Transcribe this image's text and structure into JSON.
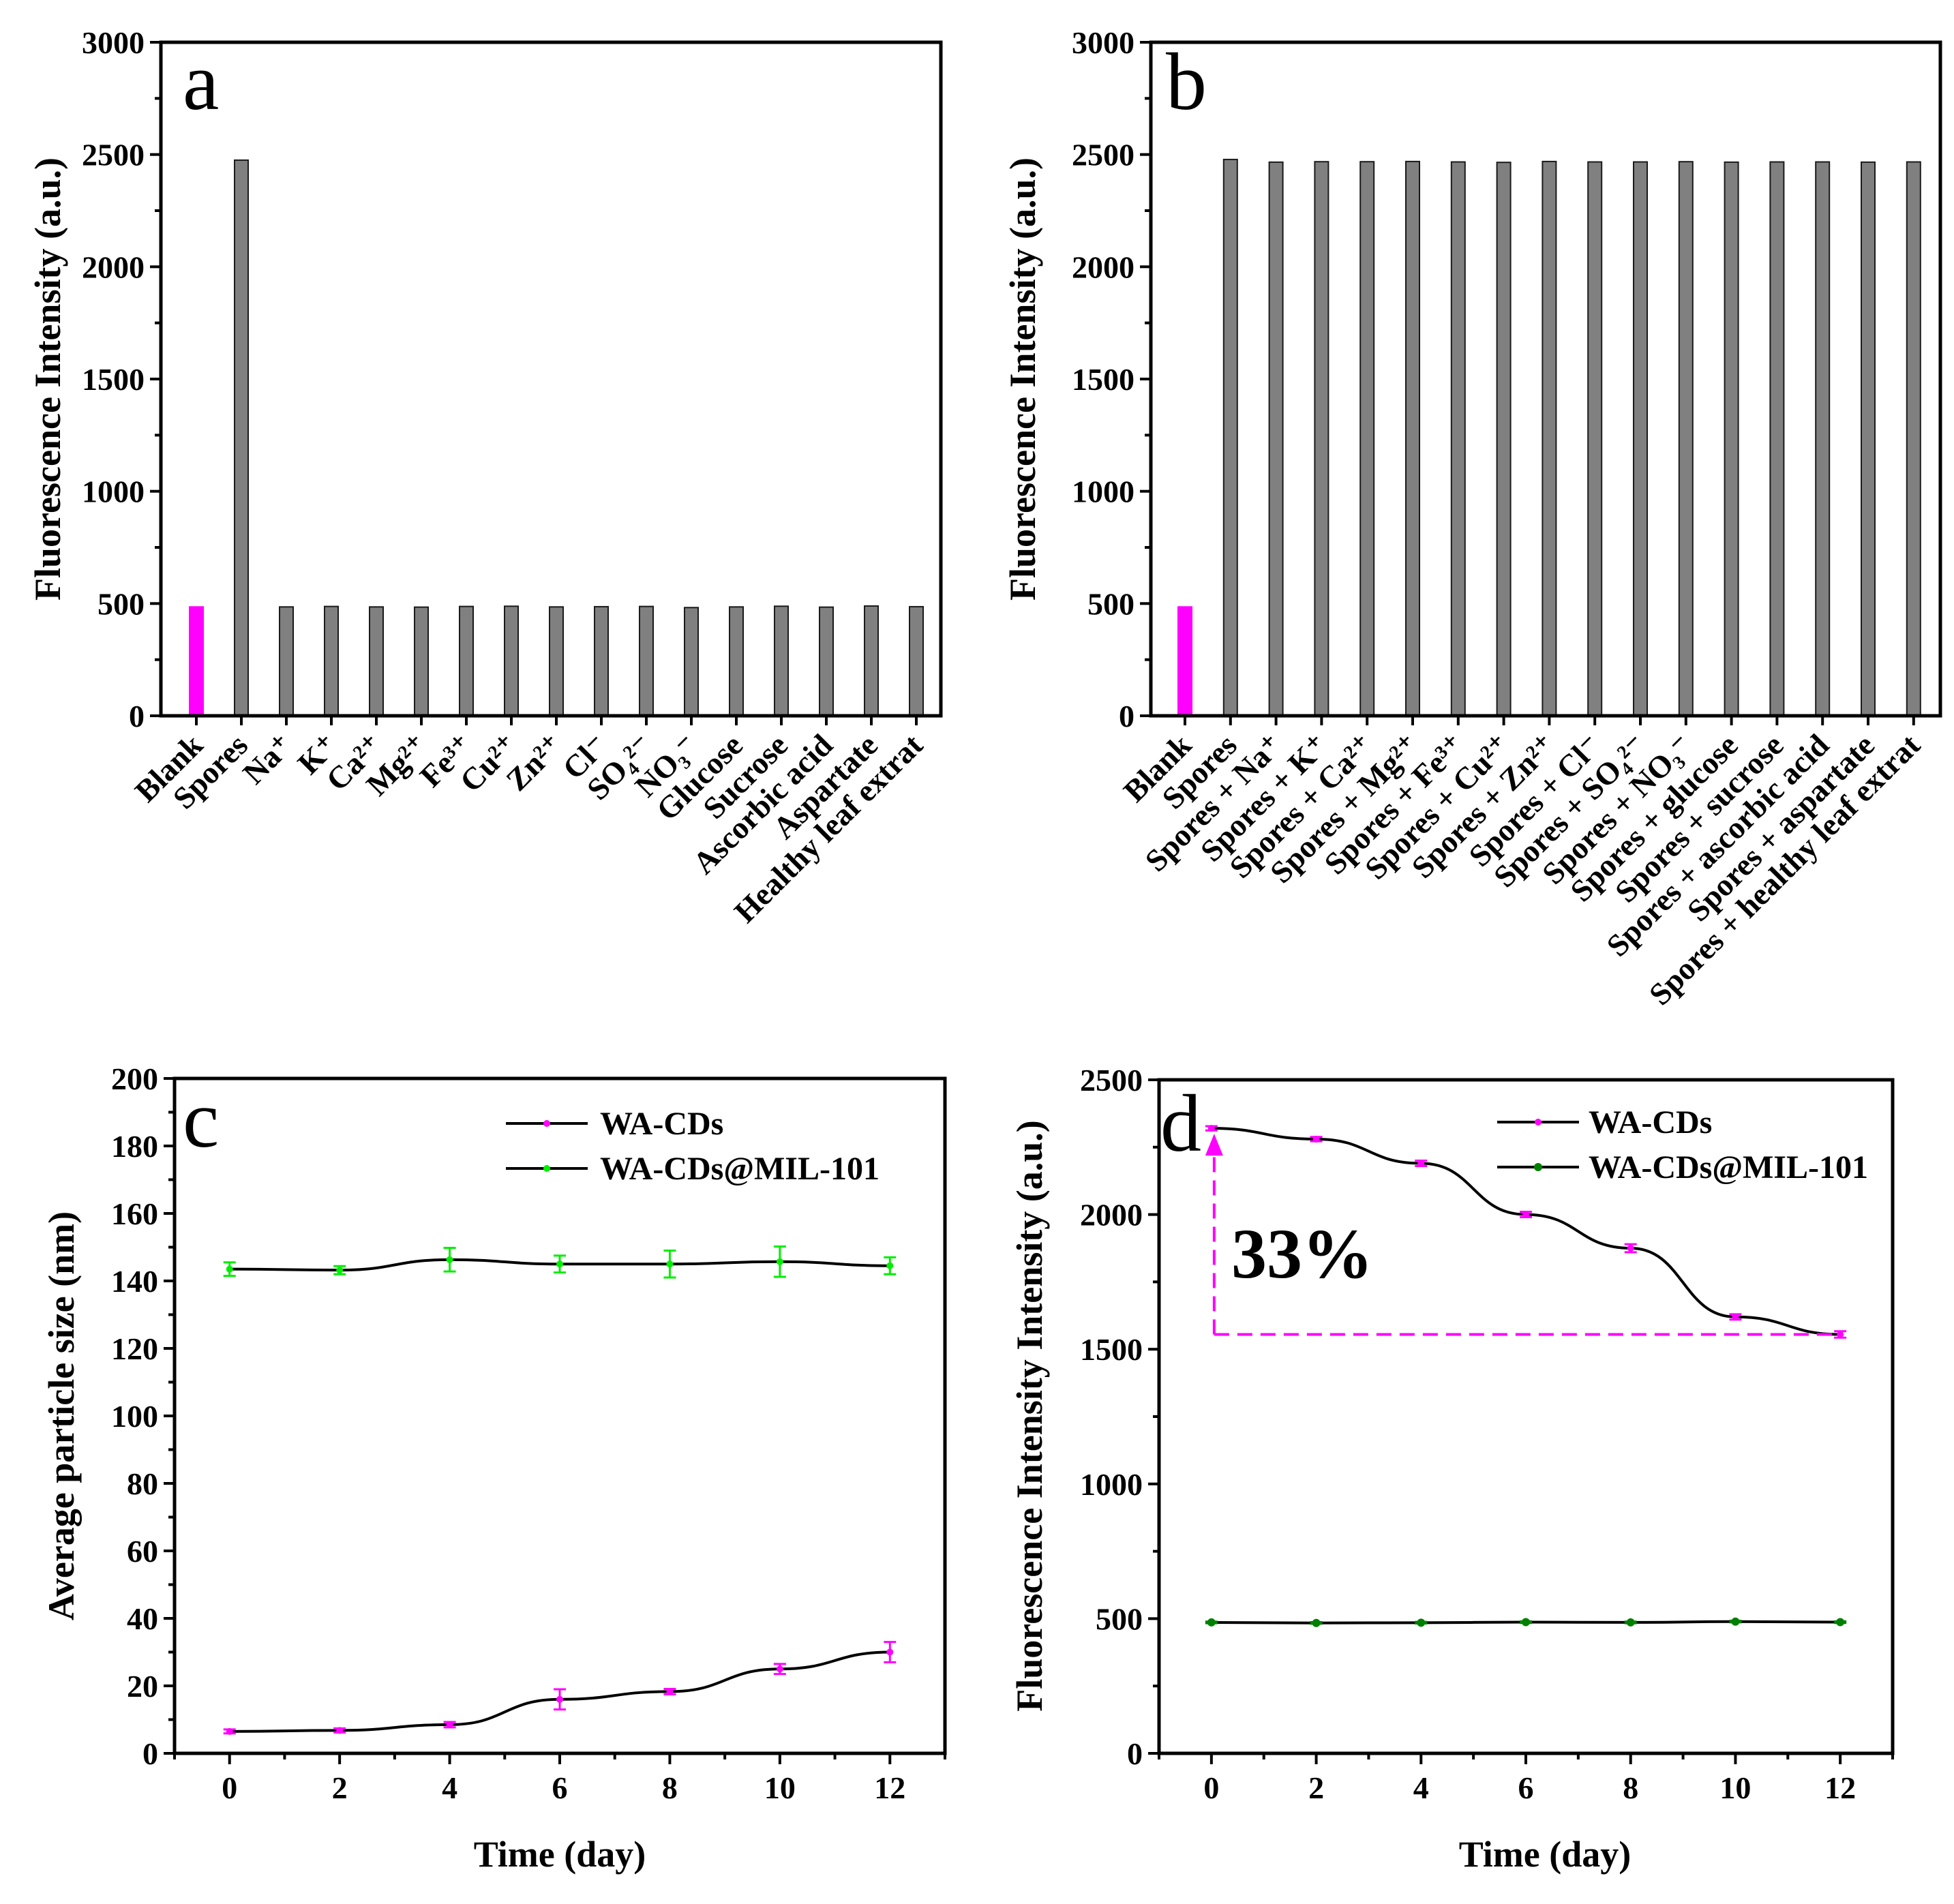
{
  "colors": {
    "blank": "#ff00ff",
    "bar": "#808080",
    "bar_edge": "#1a1a1a",
    "series_c_0": "#ff00ff",
    "series_c_1": "#00ee00",
    "series_d_0": "#ff00ff",
    "series_d_1": "#008000",
    "line": "#000000",
    "annotation": "#ff00ff"
  },
  "chart_data": [
    {
      "panel": "a",
      "type": "bar",
      "ylabel": "Fluorescence Intensity (a.u.)",
      "ylim": [
        0,
        3000
      ],
      "yticks": [
        0,
        500,
        1000,
        1500,
        2000,
        2500,
        3000
      ],
      "categories": [
        "Blank",
        "Spores",
        "Na⁺",
        "K⁺",
        "Ca²⁺",
        "Mg²⁺",
        "Fe³⁺",
        "Cu²⁺",
        "Zn²⁺",
        "Cl⁻",
        "SO₄²⁻",
        "NO₃⁻",
        "Glucose",
        "Sucrose",
        "Ascorbic acid",
        "Aspartate",
        "Healthy leaf extrat"
      ],
      "values": [
        485,
        2475,
        485,
        487,
        485,
        484,
        487,
        488,
        485,
        486,
        487,
        482,
        485,
        488,
        484,
        489,
        486
      ]
    },
    {
      "panel": "b",
      "type": "bar",
      "ylabel": "Fluorescence Intensity (a.u.)",
      "ylim": [
        0,
        3000
      ],
      "yticks": [
        0,
        500,
        1000,
        1500,
        2000,
        2500,
        3000
      ],
      "categories": [
        "Blank",
        "Spores",
        "Spores + Na⁺",
        "Spores + K⁺",
        "Spores + Ca²⁺",
        "Spores + Mg²⁺",
        "Spores + Fe³⁺",
        "Spores + Cu²⁺",
        "Spores + Zn²⁺",
        "Spores + Cl⁻",
        "Spores + SO₄²⁻",
        "Spores + NO₃⁻",
        "Spores + glucose",
        "Spores + sucrose",
        "Spores + ascorbic acid",
        "Spores + aspartate",
        "Spores + healthy leaf extrat"
      ],
      "values": [
        485,
        2478,
        2466,
        2468,
        2468,
        2469,
        2467,
        2465,
        2469,
        2467,
        2467,
        2468,
        2466,
        2467,
        2467,
        2466,
        2467
      ]
    },
    {
      "panel": "c",
      "type": "line",
      "xlabel": "Time (day)",
      "ylabel": "Average particle size (nm)",
      "xlim": [
        -1,
        13
      ],
      "ylim": [
        0,
        200
      ],
      "xticks": [
        0,
        2,
        4,
        6,
        8,
        10,
        12
      ],
      "yticks": [
        0,
        20,
        40,
        60,
        80,
        100,
        120,
        140,
        160,
        180,
        200
      ],
      "x": [
        0,
        2,
        4,
        6,
        8,
        10,
        12
      ],
      "legend_position": "top-right",
      "series": [
        {
          "name": "WA-CDs",
          "values": [
            6.5,
            6.8,
            8.5,
            16,
            18.3,
            25,
            30
          ],
          "errors": [
            0.6,
            0.6,
            0.8,
            3,
            0.8,
            1.5,
            3
          ]
        },
        {
          "name": "WA-CDs@MIL-101",
          "values": [
            143.5,
            143.2,
            146.3,
            145,
            145,
            145.7,
            144.5
          ],
          "errors": [
            2,
            1.2,
            3.5,
            2.5,
            4,
            4.5,
            2.5
          ]
        }
      ]
    },
    {
      "panel": "d",
      "type": "line",
      "xlabel": "Time (day)",
      "ylabel": "Fluorescence Intensity Intensity (a.u.)",
      "xlim": [
        -1,
        13
      ],
      "ylim": [
        0,
        2500
      ],
      "xticks": [
        0,
        2,
        4,
        6,
        8,
        10,
        12
      ],
      "yticks": [
        0,
        500,
        1000,
        1500,
        2000,
        2500
      ],
      "x": [
        0,
        2,
        4,
        6,
        8,
        10,
        12
      ],
      "legend_position": "top-right",
      "series": [
        {
          "name": "WA-CDs",
          "values": [
            2320,
            2280,
            2190,
            2000,
            1875,
            1620,
            1555
          ],
          "errors": [
            8,
            8,
            10,
            10,
            15,
            10,
            12
          ]
        },
        {
          "name": "WA-CDs@MIL-101",
          "values": [
            486,
            484,
            485,
            487,
            486,
            489,
            487
          ],
          "errors": [
            3,
            3,
            3,
            3,
            3,
            3,
            3
          ]
        }
      ],
      "annotation": {
        "text": "33%",
        "from_y": 2320,
        "to_y": 1555,
        "x_start": 0,
        "x_end": 12
      }
    }
  ]
}
